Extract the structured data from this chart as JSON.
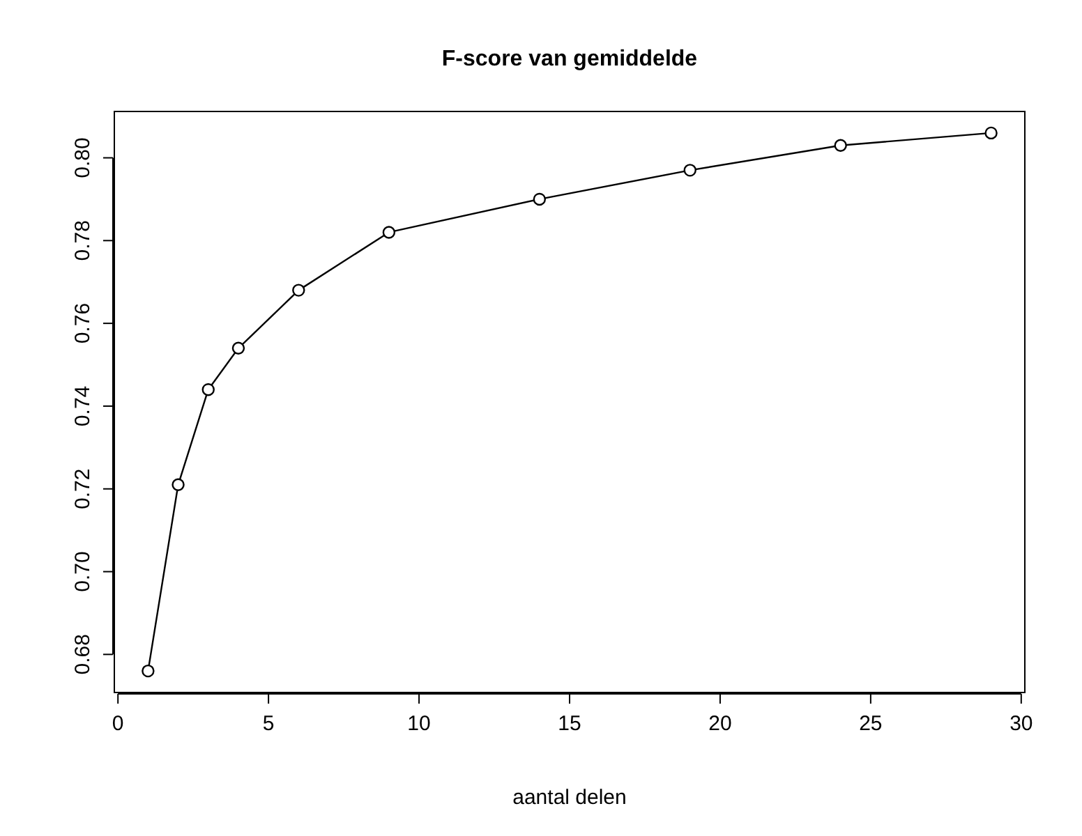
{
  "chart_data": {
    "type": "line",
    "title": "F-score van gemiddelde",
    "xlabel": "aantal delen",
    "x": [
      1,
      2,
      3,
      4,
      6,
      9,
      14,
      19,
      24,
      29
    ],
    "series": [
      {
        "color": "#000000",
        "values": [
          0.676,
          0.721,
          0.744,
          0.754,
          0.768,
          0.782,
          0.79,
          0.797,
          0.803,
          0.806
        ]
      }
    ],
    "xlim": [
      -0.12,
      30.12
    ],
    "xticks": [
      0,
      5,
      10,
      15,
      20,
      25,
      30
    ],
    "ylim": [
      0.6708,
      0.8112
    ],
    "yticks": [
      0.68,
      {
        "value": 0.7,
        "label": "0.70"
      },
      0.72,
      0.74,
      0.76,
      0.78,
      {
        "value": 0.8,
        "label": "0.80"
      }
    ],
    "marker": "circle",
    "line_style": "solid",
    "grid": false
  }
}
